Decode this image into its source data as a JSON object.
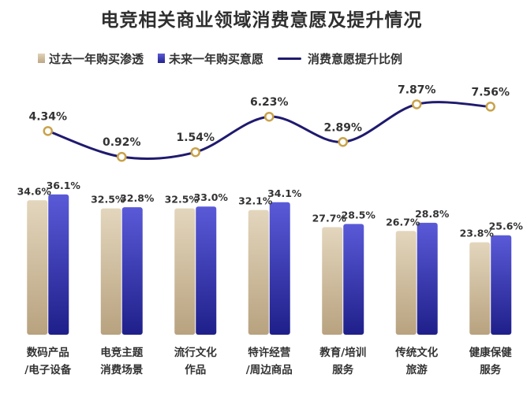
{
  "chart_data": {
    "title": "电竞相关商业领域消费意愿及提升情况",
    "type": "bar",
    "categories": [
      [
        "数码产品",
        "/电子设备"
      ],
      [
        "电竞主题",
        "消费场景"
      ],
      [
        "流行文化",
        "作品"
      ],
      [
        "特许经营",
        "/周边商品"
      ],
      [
        "教育/培训",
        "服务"
      ],
      [
        "传统文化",
        "旅游"
      ],
      [
        "健康保健",
        "服务"
      ]
    ],
    "series": [
      {
        "name": "过去一年购买渗透",
        "values": [
          34.6,
          32.5,
          32.5,
          32.1,
          27.7,
          26.7,
          23.8
        ],
        "labels": [
          "34.6%",
          "32.5%",
          "32.5%",
          "32.1%",
          "27.7%",
          "26.7%",
          "23.8%"
        ]
      },
      {
        "name": "未来一年购买意愿",
        "values": [
          36.1,
          32.8,
          33.0,
          34.1,
          28.5,
          28.8,
          25.6
        ],
        "labels": [
          "36.1%",
          "32.8%",
          "33.0%",
          "34.1%",
          "28.5%",
          "28.8%",
          "25.6%"
        ]
      }
    ],
    "line_series": {
      "name": "消费意愿提升比例",
      "values": [
        4.34,
        0.92,
        1.54,
        6.23,
        2.89,
        7.87,
        7.56
      ],
      "labels": [
        "4.34%",
        "0.92%",
        "1.54%",
        "6.23%",
        "2.89%",
        "7.87%",
        "7.56%"
      ]
    },
    "bar_axis_range": [
      0,
      37.5
    ],
    "line_axis_range": [
      0,
      8.75
    ],
    "legend_position": "top-left",
    "grid": false,
    "colors": {
      "past_top": "#e3d6bd",
      "past_bottom": "#b8a27f",
      "future_top": "#5a5ad8",
      "future_bottom": "#1f1f8a",
      "line": "#1f1a6e",
      "marker_fill": "#ffffff",
      "marker_stroke": "#c9a24a"
    }
  }
}
